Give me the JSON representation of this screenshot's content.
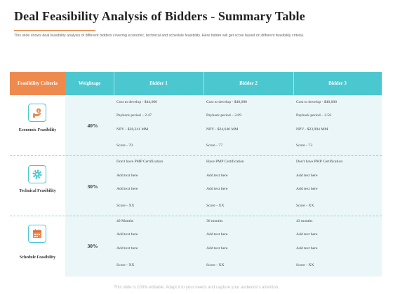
{
  "title": "Deal Feasibility Analysis of Bidders - Summary Table",
  "subtitle": "This slide shows deal feasibility analysis of different bidders covering economic, technical and schedule feasibility. Here bidder will get score based on different feasibility criteria.",
  "colors": {
    "orange": "#ef8a4f",
    "teal": "#4bc7cf",
    "body_bg": "#eaf6f8"
  },
  "table": {
    "headers": {
      "criteria": "Feasibility Criteria",
      "weightage": "Weightage",
      "bidder1": "Bidder 1",
      "bidder2": "Bidder 2",
      "bidder3": "Bidder 3"
    },
    "groups": [
      {
        "label": "Economic Feasibility",
        "icon": "money-hand-icon",
        "weightage": "40%",
        "rows": [
          [
            "Cost to develop - $44,000",
            "Cost to develop - $40,000",
            "Cost to develop - $40,000"
          ],
          [
            "Payback period – 2.47",
            "Payback period – 2.69",
            "Payback period – 2.56"
          ],
          [
            "NPV - $28,341 MM",
            "NPV - $24,640 MM",
            "NPV - $23,994 MM"
          ],
          [
            "Score - 70",
            "Score - 77",
            "Score - 73"
          ]
        ]
      },
      {
        "label": "Technical Feasibility",
        "icon": "gear-icon",
        "weightage": "30%",
        "rows": [
          [
            "Don't have PMP Certification",
            "Have PMP Certification",
            "Don't have PMP Certification"
          ],
          [
            "Add text here",
            "Add text here",
            "Add text here"
          ],
          [
            "Add text here",
            "Add text here",
            "Add text here"
          ],
          [
            "Score - XX",
            "Score - XX",
            "Score - XX"
          ]
        ]
      },
      {
        "label": "Schedule Feasibility",
        "icon": "calendar-icon",
        "weightage": "30%",
        "rows": [
          [
            "40 Months",
            "36 months",
            "43 months"
          ],
          [
            "Add text here",
            "Add text here",
            "Add text here"
          ],
          [
            "Add text here",
            "Add text here",
            "Add text here"
          ],
          [
            "Score - XX",
            "Score - XX",
            "Score - XX"
          ]
        ]
      }
    ]
  },
  "footer": "This slide is 100% editable. Adapt it to your needs and capture your audience's attention."
}
